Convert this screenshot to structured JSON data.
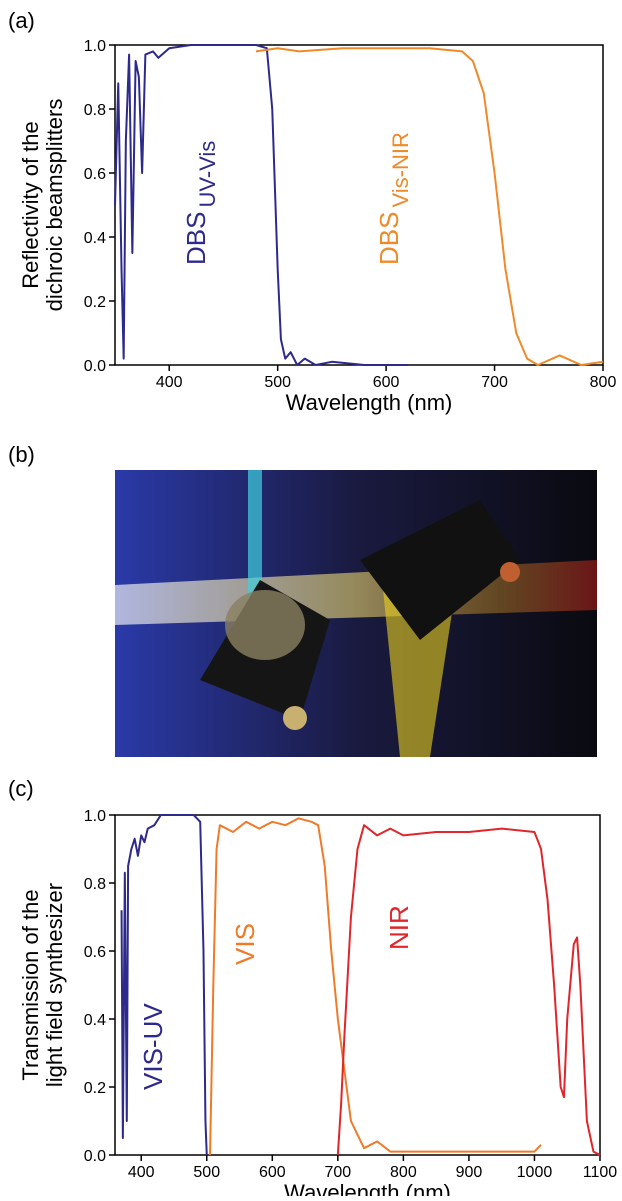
{
  "chart_data": [
    {
      "type": "line",
      "panel_label": "(a)",
      "x_label": "Wavelength (nm)",
      "y_label": [
        "Reflectivity of the",
        "dichroic beamsplitters"
      ],
      "annotations": [
        "DBS",
        "DBS"
      ],
      "xlim": [
        350,
        800
      ],
      "xticks": [
        400,
        500,
        600,
        700,
        800
      ],
      "ylim": [
        0,
        1
      ],
      "yticks": [
        {
          "value": 0,
          "label": "0.0"
        },
        {
          "value": 0.2,
          "label": "0.2"
        },
        {
          "value": 0.4,
          "label": "0.4"
        },
        {
          "value": 0.6,
          "label": "0.6"
        },
        {
          "value": 0.8,
          "label": "0.8"
        },
        {
          "value": 1,
          "label": "1.0"
        }
      ],
      "series": [
        {
          "name": "UV-Vis",
          "color": "#2e2a8c",
          "x": [
            350,
            353,
            356,
            358,
            360,
            363,
            366,
            369,
            372,
            375,
            378,
            385,
            390,
            400,
            420,
            450,
            480,
            490,
            495,
            500,
            503,
            507,
            512,
            518,
            525,
            535,
            550,
            580,
            620
          ],
          "values": [
            0.5,
            0.88,
            0.3,
            0.02,
            0.7,
            0.97,
            0.35,
            0.95,
            0.9,
            0.6,
            0.97,
            0.98,
            0.96,
            0.99,
            1.0,
            1.0,
            1.0,
            0.99,
            0.8,
            0.3,
            0.08,
            0.02,
            0.04,
            0.0,
            0.02,
            0.0,
            0.01,
            0.0,
            0.0
          ]
        },
        {
          "name": "Vis-NIR",
          "color": "#ef8a2a",
          "x": [
            480,
            500,
            520,
            560,
            600,
            640,
            670,
            680,
            690,
            700,
            710,
            720,
            730,
            740,
            760,
            780,
            800
          ],
          "values": [
            0.98,
            0.99,
            0.98,
            0.99,
            0.99,
            0.99,
            0.98,
            0.95,
            0.85,
            0.6,
            0.3,
            0.1,
            0.02,
            0.0,
            0.03,
            0.0,
            0.01
          ]
        }
      ]
    },
    {
      "type": "line",
      "panel_label": "(c)",
      "x_label": "Wavelength (nm)",
      "y_label": [
        "Transmission of the",
        "light field synthesizer"
      ],
      "xlim": [
        360,
        1100
      ],
      "xticks": [
        400,
        500,
        600,
        700,
        800,
        900,
        1000,
        1100
      ],
      "ylim": [
        0,
        1
      ],
      "yticks": [
        {
          "value": 0,
          "label": "0.0"
        },
        {
          "value": 0.2,
          "label": "0.2"
        },
        {
          "value": 0.4,
          "label": "0.4"
        },
        {
          "value": 0.6,
          "label": "0.6"
        },
        {
          "value": 0.8,
          "label": "0.8"
        },
        {
          "value": 1,
          "label": "1.0"
        }
      ],
      "series": [
        {
          "name": "VIS-UV",
          "color": "#2e2a8c",
          "x": [
            370,
            372,
            375,
            378,
            380,
            385,
            390,
            395,
            400,
            405,
            410,
            420,
            430,
            450,
            480,
            490,
            495,
            498,
            500
          ],
          "values": [
            0.72,
            0.05,
            0.83,
            0.1,
            0.85,
            0.9,
            0.93,
            0.88,
            0.94,
            0.92,
            0.96,
            0.97,
            1.0,
            1.0,
            1.0,
            0.98,
            0.6,
            0.1,
            0.0
          ]
        },
        {
          "name": "VIS",
          "color": "#ef7a2a",
          "x": [
            505,
            510,
            515,
            520,
            540,
            560,
            580,
            600,
            620,
            640,
            660,
            670,
            680,
            690,
            700,
            710,
            720,
            740,
            760,
            780,
            900,
            1000,
            1010
          ],
          "values": [
            0.0,
            0.5,
            0.9,
            0.97,
            0.95,
            0.98,
            0.96,
            0.98,
            0.97,
            0.99,
            0.98,
            0.97,
            0.85,
            0.6,
            0.4,
            0.25,
            0.1,
            0.02,
            0.04,
            0.01,
            0.01,
            0.01,
            0.03
          ]
        },
        {
          "name": "NIR",
          "color": "#e0262a",
          "x": [
            700,
            705,
            710,
            720,
            730,
            740,
            760,
            780,
            800,
            850,
            900,
            950,
            1000,
            1010,
            1020,
            1030,
            1040,
            1045,
            1050,
            1060,
            1065,
            1070,
            1080,
            1090,
            1100
          ],
          "values": [
            0.0,
            0.15,
            0.35,
            0.7,
            0.9,
            0.97,
            0.94,
            0.96,
            0.94,
            0.95,
            0.95,
            0.96,
            0.95,
            0.9,
            0.75,
            0.5,
            0.2,
            0.17,
            0.4,
            0.62,
            0.64,
            0.5,
            0.1,
            0.01,
            0.0
          ]
        }
      ]
    }
  ],
  "photo": {
    "panel_label": "(b)"
  }
}
